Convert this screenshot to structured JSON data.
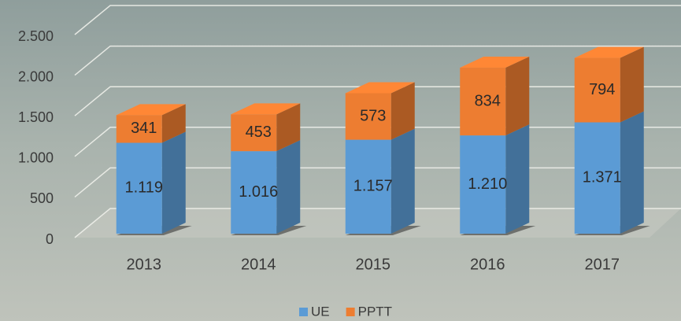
{
  "chart_data": {
    "type": "bar3d-stacked",
    "categories": [
      "2013",
      "2014",
      "2015",
      "2016",
      "2017"
    ],
    "series": [
      {
        "name": "UE",
        "color": "#5b9bd5",
        "values": [
          1119,
          1016,
          1157,
          1210,
          1371
        ],
        "value_labels": [
          "1.119",
          "1.016",
          "1.157",
          "1.210",
          "1.371"
        ]
      },
      {
        "name": "PPTT",
        "color": "#ed7d31",
        "values": [
          341,
          453,
          573,
          834,
          794
        ]
      }
    ],
    "ylim": [
      0,
      2500
    ],
    "yticks": [
      0,
      500,
      {
        "value": 1000,
        "label": "1.000"
      },
      {
        "value": 1500,
        "label": "1.500"
      },
      {
        "value": 2000,
        "label": "2.000"
      },
      {
        "value": 2500,
        "label": "2.500"
      }
    ],
    "grid": true
  }
}
